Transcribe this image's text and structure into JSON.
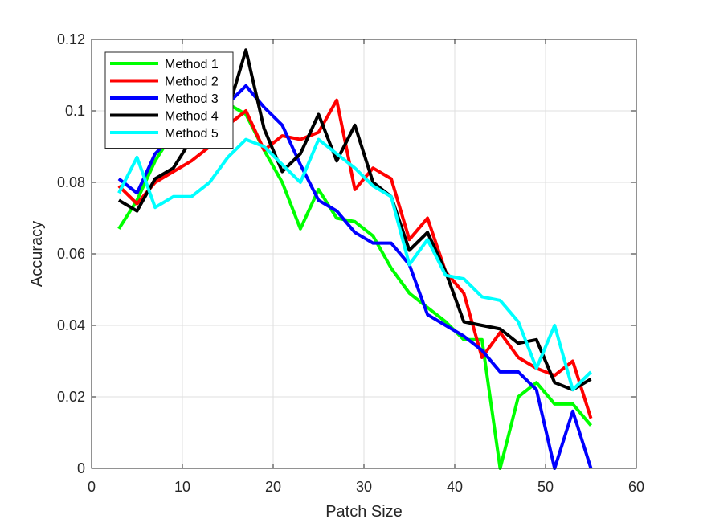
{
  "chart_data": {
    "type": "line",
    "xlabel": "Patch Size",
    "ylabel": "Accuracy",
    "xlim": [
      0,
      60
    ],
    "ylim": [
      0,
      0.12
    ],
    "xticks": [
      0,
      10,
      20,
      30,
      40,
      50,
      60
    ],
    "yticks": [
      0,
      0.02,
      0.04,
      0.06,
      0.08,
      0.1,
      0.12
    ],
    "xtick_labels": [
      "0",
      "10",
      "20",
      "30",
      "40",
      "50",
      "60"
    ],
    "ytick_labels": [
      "0",
      "0.02",
      "0.04",
      "0.06",
      "0.08",
      "0.1",
      "0.12"
    ],
    "grid": true,
    "legend_position": "top-left",
    "x": [
      3,
      5,
      7,
      9,
      11,
      13,
      15,
      17,
      19,
      21,
      23,
      25,
      27,
      29,
      31,
      33,
      35,
      37,
      39,
      41,
      43,
      45,
      47,
      49,
      51,
      53,
      55
    ],
    "series": [
      {
        "name": "Method 1",
        "color": "#00ff00",
        "values": [
          0.067,
          0.075,
          0.086,
          0.094,
          0.099,
          0.101,
          0.102,
          0.099,
          0.089,
          0.08,
          0.067,
          0.078,
          0.07,
          0.069,
          0.065,
          0.056,
          0.049,
          0.045,
          0.041,
          0.036,
          0.036,
          0.0,
          0.02,
          0.024,
          0.018,
          0.018,
          0.012
        ]
      },
      {
        "name": "Method 2",
        "color": "#ff0000",
        "values": [
          0.079,
          0.074,
          0.08,
          0.083,
          0.086,
          0.09,
          0.096,
          0.1,
          0.089,
          0.093,
          0.092,
          0.094,
          0.103,
          0.078,
          0.084,
          0.081,
          0.064,
          0.07,
          0.055,
          0.049,
          0.031,
          0.038,
          0.031,
          0.028,
          0.026,
          0.03,
          0.014
        ]
      },
      {
        "name": "Method 3",
        "color": "#0000ff",
        "values": [
          0.081,
          0.077,
          0.088,
          0.093,
          0.097,
          0.101,
          0.102,
          0.107,
          0.101,
          0.096,
          0.085,
          0.075,
          0.072,
          0.066,
          0.063,
          0.063,
          0.057,
          0.043,
          0.04,
          0.037,
          0.033,
          0.027,
          0.027,
          0.022,
          0.0,
          0.016,
          0.0
        ]
      },
      {
        "name": "Method 4",
        "color": "#000000",
        "values": [
          0.075,
          0.072,
          0.081,
          0.084,
          0.092,
          0.096,
          0.1,
          0.117,
          0.095,
          0.083,
          0.088,
          0.099,
          0.086,
          0.096,
          0.08,
          0.076,
          0.061,
          0.066,
          0.055,
          0.041,
          0.04,
          0.039,
          0.035,
          0.036,
          0.024,
          0.022,
          0.025
        ]
      },
      {
        "name": "Method 5",
        "color": "#00ffff",
        "values": [
          0.077,
          0.087,
          0.073,
          0.076,
          0.076,
          0.08,
          0.087,
          0.092,
          0.09,
          0.085,
          0.08,
          0.092,
          0.088,
          0.084,
          0.079,
          0.076,
          0.057,
          0.064,
          0.054,
          0.053,
          0.048,
          0.047,
          0.041,
          0.028,
          0.04,
          0.022,
          0.027
        ]
      }
    ]
  }
}
